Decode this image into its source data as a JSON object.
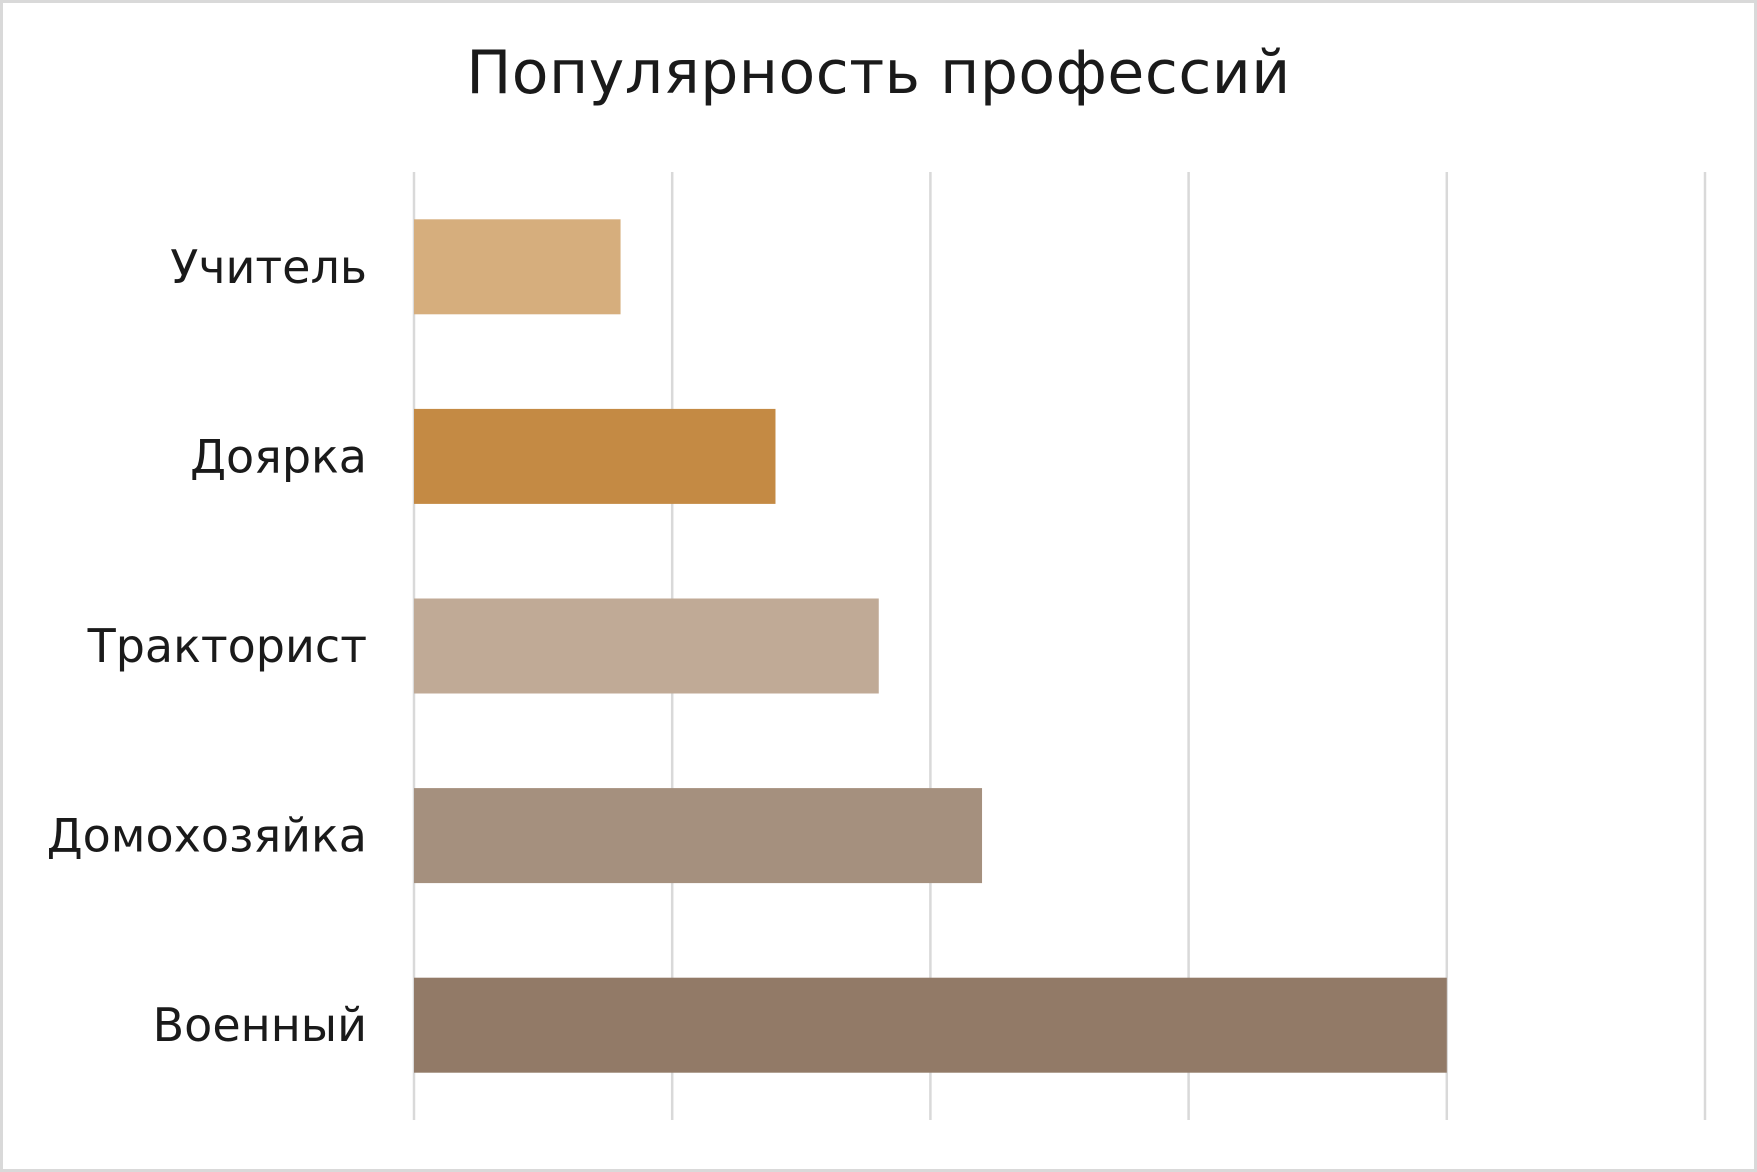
{
  "chart_data": {
    "type": "bar",
    "orientation": "horizontal",
    "title": "Популярность профессий",
    "categories": [
      "Учитель",
      "Доярка",
      "Тракторист",
      "Домохозяйка",
      "Военный"
    ],
    "values": [
      0.8,
      1.4,
      1.8,
      2.2,
      4.0
    ],
    "colors": [
      "#d6ae7d",
      "#c48a44",
      "#c0aa96",
      "#a5907e",
      "#927a67"
    ],
    "xlim": [
      0,
      5
    ],
    "grid": true,
    "legend": false,
    "xlabel": "",
    "ylabel": ""
  }
}
